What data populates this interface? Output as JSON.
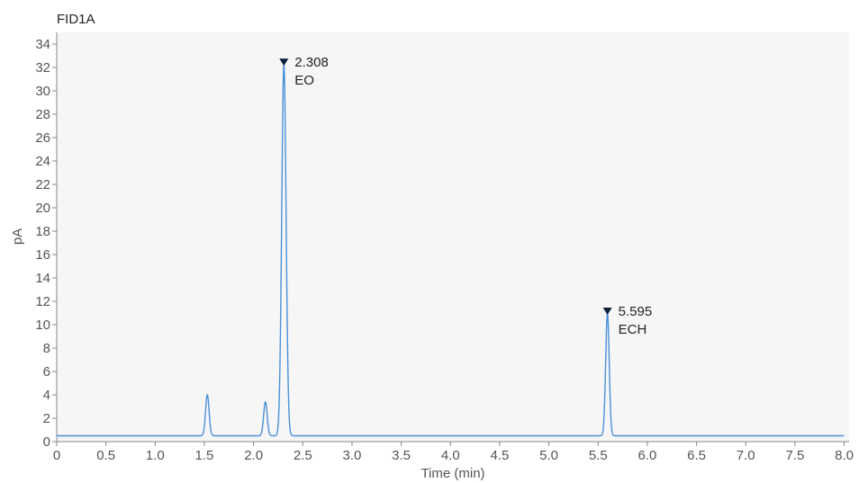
{
  "chart_data": {
    "type": "line",
    "title": "FID1A",
    "xlabel": "Time (min)",
    "ylabel": "pA",
    "xlim": [
      0,
      8.05
    ],
    "ylim": [
      0,
      35
    ],
    "xticks": [
      0,
      0.5,
      1.0,
      1.5,
      2.0,
      2.5,
      3.0,
      3.5,
      4.0,
      4.5,
      5.0,
      5.5,
      6.0,
      6.5,
      7.0,
      7.5,
      8.0
    ],
    "xtick_labels": [
      "0",
      "0.5",
      "1.0",
      "1.5",
      "2.0",
      "2.5",
      "3.0",
      "3.5",
      "4.0",
      "4.5",
      "5.0",
      "5.5",
      "6.0",
      "6.5",
      "7.0",
      "7.5",
      "8.0"
    ],
    "yticks": [
      0,
      2,
      4,
      6,
      8,
      10,
      12,
      14,
      16,
      18,
      20,
      22,
      24,
      26,
      28,
      30,
      32,
      34
    ],
    "ytick_labels": [
      "0",
      "2",
      "4",
      "6",
      "8",
      "10",
      "12",
      "14",
      "16",
      "18",
      "20",
      "22",
      "24",
      "26",
      "28",
      "30",
      "32",
      "34"
    ],
    "grid": false,
    "colors": {
      "trace": "#4a90d9",
      "marker": "#0b1f3a",
      "plot_bg": "#f6f6f6",
      "axis": "#888888"
    },
    "series": [
      {
        "baseline": 0.5,
        "peaks": [
          {
            "x": 1.53,
            "height": 4.0,
            "width": 0.018
          },
          {
            "x": 2.12,
            "height": 3.4,
            "width": 0.018
          },
          {
            "x": 2.308,
            "height": 32.3,
            "width": 0.022
          },
          {
            "x": 5.595,
            "height": 11.0,
            "width": 0.018
          }
        ]
      }
    ],
    "annotations": [
      {
        "x": 2.308,
        "y": 32.3,
        "time": "2.308",
        "name": "EO"
      },
      {
        "x": 5.595,
        "y": 11.0,
        "time": "5.595",
        "name": "ECH"
      }
    ]
  }
}
